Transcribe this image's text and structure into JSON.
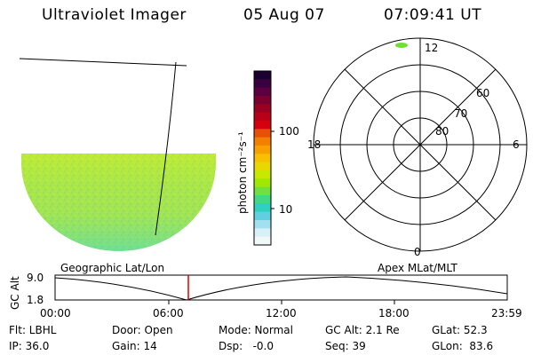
{
  "header": {
    "instrument": "Ultraviolet Imager",
    "date": "05 Aug 07",
    "time": "07:09:41 UT"
  },
  "colorbar": {
    "label": "photon cm⁻²s⁻¹",
    "ticks": [
      "100",
      "10"
    ],
    "colors": [
      "#1a0030",
      "#3a0040",
      "#5a0040",
      "#7a0030",
      "#9a0020",
      "#b80018",
      "#d40010",
      "#e85008",
      "#f48000",
      "#f8a000",
      "#f8c000",
      "#e8d800",
      "#c8e800",
      "#a0e800",
      "#70e040",
      "#40d880",
      "#30d0c0",
      "#60d0e0",
      "#a0e0f0",
      "#d8f0f8",
      "#f0f8f8"
    ]
  },
  "polar_plot": {
    "mlt_labels": {
      "top": "12",
      "left": "18",
      "right": "6",
      "bottom": "0"
    },
    "lat_labels": [
      "60",
      "70",
      "80"
    ]
  },
  "altitude_strip": {
    "axis_label": "GC Alt",
    "y_ticks": [
      "9.0",
      "1.8"
    ],
    "left_title": "Geographic Lat/Lon",
    "right_title": "Apex MLat/MLT",
    "time_ticks": [
      "00:00",
      "06:00",
      "12:00",
      "18:00",
      "23:59"
    ]
  },
  "status": {
    "flt": "Flt: LBHL",
    "door": "Door: Open",
    "mode": "Mode: Normal",
    "gc_alt": "GC Alt: 2.1 Re",
    "glat": "GLat:  52.3",
    "ip": "IP: 36.0",
    "gain": "Gain: 14",
    "dsp": "Dsp:   -0.0",
    "seq": "Seq: 39",
    "glon": "GLon:  83.6"
  }
}
